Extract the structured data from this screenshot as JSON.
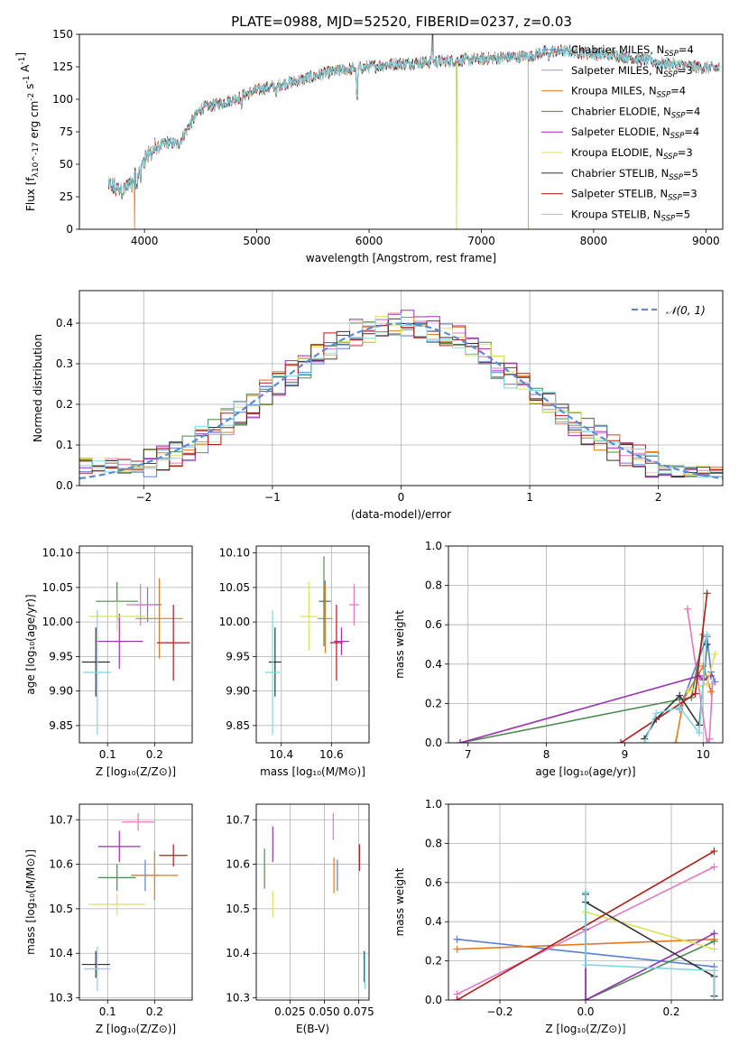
{
  "figure_title": "PLATE=0988, MJD=52520, FIBERID=0237, z=0.03",
  "chart_data": [
    {
      "id": "spectrum",
      "type": "line",
      "title": "PLATE=0988, MJD=52520, FIBERID=0237, z=0.03",
      "xlabel": "wavelength [Angstrom, rest frame]",
      "ylabel": "Flux [f_λ10^-17 erg cm^-2 s^-1 A^-1]",
      "xlim": [
        3420,
        9150
      ],
      "ylim": [
        0,
        150
      ],
      "xticks": [
        4000,
        5000,
        6000,
        7000,
        8000,
        9000
      ],
      "yticks": [
        0,
        25,
        50,
        75,
        100,
        125,
        150
      ],
      "grid": false,
      "legend": "upper right",
      "series": [
        {
          "name": "Chabrier MILES, N_SSP=4",
          "color": "#5B7FD6"
        },
        {
          "name": "Salpeter MILES, N_SSP=3",
          "color": "#E377C2"
        },
        {
          "name": "Kroupa MILES, N_SSP=4",
          "color": "#E07B24"
        },
        {
          "name": "Chabrier ELODIE, N_SSP=4",
          "color": "#4F8A4F"
        },
        {
          "name": "Salpeter ELODIE, N_SSP=4",
          "color": "#9A32B0"
        },
        {
          "name": "Kroupa ELODIE, N_SSP=3",
          "color": "#D8E45A"
        },
        {
          "name": "Chabrier STELIB, N_SSP=5",
          "color": "#333333"
        },
        {
          "name": "Salpeter STELIB, N_SSP=3",
          "color": "#B01C1C"
        },
        {
          "name": "Kroupa STELIB, N_SSP=5",
          "color": "#7FD8E0"
        }
      ],
      "continuum": {
        "x": [
          3680,
          3800,
          3900,
          4000,
          4100,
          4200,
          4300,
          4400,
          4500,
          4600,
          4800,
          5000,
          5200,
          5400,
          5600,
          5800,
          6000,
          6200,
          6400,
          6600,
          6800,
          7000,
          7200,
          7400,
          7600,
          7800,
          8000,
          8200,
          8400,
          8600,
          8800,
          9000
        ],
        "y": [
          33,
          30,
          36,
          55,
          62,
          67,
          65,
          80,
          93,
          95,
          100,
          107,
          111,
          115,
          120,
          123,
          125,
          127,
          128,
          129,
          130,
          131,
          132,
          133,
          137,
          137,
          135,
          134,
          131,
          128,
          126,
          124
        ]
      },
      "drops": [
        {
          "series": 2,
          "x": [
            3912,
            7420
          ]
        },
        {
          "series": 5,
          "x": [
            6778
          ]
        },
        {
          "series": 3,
          "x": [
            6778
          ]
        }
      ]
    },
    {
      "id": "residuals",
      "type": "step",
      "xlabel": "(data-model)/error",
      "ylabel": "Normed distribution",
      "xlim": [
        -2.5,
        2.5
      ],
      "ylim": [
        0,
        0.48
      ],
      "xticks": [
        -2,
        -1,
        0,
        1,
        2
      ],
      "yticks": [
        0.0,
        0.1,
        0.2,
        0.3,
        0.4
      ],
      "grid": true,
      "legend": "upper right",
      "reference": {
        "name": "𝒩(0, 1)",
        "color": "#5B8BD6"
      }
    },
    {
      "id": "age_vs_Z",
      "type": "errorbar",
      "xlabel": "Z [log₁₀(Z/Z⊙)]",
      "ylabel": "age  [log₁₀(age/yr)]",
      "xlim": [
        0.04,
        0.28
      ],
      "ylim": [
        9.825,
        10.11
      ],
      "xticks": [
        0.1,
        0.2
      ],
      "yticks": [
        9.85,
        9.9,
        9.95,
        10.0,
        10.05,
        10.1
      ],
      "grid": true,
      "points": [
        {
          "c": 0,
          "x": 0.185,
          "y": 10.025,
          "xe": 0.03,
          "ye": 0.025
        },
        {
          "c": 1,
          "x": 0.17,
          "y": 10.025,
          "xe": 0.03,
          "ye": 0.03
        },
        {
          "c": 2,
          "x": 0.21,
          "y": 10.005,
          "xe": 0.05,
          "ye": 0.058
        },
        {
          "c": 3,
          "x": 0.12,
          "y": 10.03,
          "xe": 0.045,
          "ye": 0.028
        },
        {
          "c": 4,
          "x": 0.125,
          "y": 9.972,
          "xe": 0.05,
          "ye": 0.04
        },
        {
          "c": 5,
          "x": 0.12,
          "y": 10.008,
          "xe": 0.06,
          "ye": 0.022
        },
        {
          "c": 6,
          "x": 0.075,
          "y": 9.942,
          "xe": 0.03,
          "ye": 0.05
        },
        {
          "c": 7,
          "x": 0.24,
          "y": 9.97,
          "xe": 0.035,
          "ye": 0.055
        },
        {
          "c": 8,
          "x": 0.078,
          "y": 9.927,
          "xe": 0.03,
          "ye": 0.09
        }
      ]
    },
    {
      "id": "age_vs_mass",
      "type": "errorbar",
      "xlabel": "mass [log₁₀(M/M⊙)]",
      "ylabel": "",
      "xlim": [
        10.3,
        10.75
      ],
      "ylim": [
        9.825,
        10.11
      ],
      "xticks": [
        10.4,
        10.6
      ],
      "yticks": [
        9.85,
        9.9,
        9.95,
        10.0,
        10.05,
        10.1
      ],
      "grid": true,
      "points": [
        {
          "c": 0,
          "x": 10.575,
          "y": 10.03,
          "xe": 0.025,
          "ye": 0.03
        },
        {
          "c": 1,
          "x": 10.69,
          "y": 10.025,
          "xe": 0.02,
          "ye": 0.03
        },
        {
          "c": 2,
          "x": 10.575,
          "y": 10.005,
          "xe": 0.03,
          "ye": 0.05
        },
        {
          "c": 3,
          "x": 10.57,
          "y": 10.03,
          "xe": 0.02,
          "ye": 0.065
        },
        {
          "c": 4,
          "x": 10.64,
          "y": 9.972,
          "xe": 0.03,
          "ye": 0.02
        },
        {
          "c": 5,
          "x": 10.51,
          "y": 10.008,
          "xe": 0.035,
          "ye": 0.05
        },
        {
          "c": 6,
          "x": 10.375,
          "y": 9.942,
          "xe": 0.025,
          "ye": 0.05
        },
        {
          "c": 7,
          "x": 10.62,
          "y": 9.97,
          "xe": 0.025,
          "ye": 0.055
        },
        {
          "c": 8,
          "x": 10.365,
          "y": 9.927,
          "xe": 0.03,
          "ye": 0.09
        }
      ]
    },
    {
      "id": "mass_weight_vs_age",
      "type": "line",
      "xlabel": "age  [log₁₀(age/yr)]",
      "ylabel": "mass weight",
      "xlim": [
        6.75,
        10.25
      ],
      "ylim": [
        0,
        1.0
      ],
      "xticks": [
        7,
        8,
        9,
        10
      ],
      "yticks": [
        0.0,
        0.2,
        0.4,
        0.6,
        0.8,
        1.0
      ],
      "grid": true,
      "series": [
        {
          "c": 0,
          "x": [
            9.7,
            10.05,
            10.1,
            10.15
          ],
          "y": [
            0.17,
            0.54,
            0.36,
            0.31
          ]
        },
        {
          "c": 1,
          "x": [
            9.8,
            10.05,
            10.08,
            10.12
          ],
          "y": [
            0.68,
            0.0,
            0.02,
            0.3
          ]
        },
        {
          "c": 2,
          "x": [
            9.65,
            9.75,
            10.0,
            10.1
          ],
          "y": [
            0.0,
            0.22,
            0.39,
            0.26
          ]
        },
        {
          "c": 3,
          "x": [
            6.9,
            9.7,
            9.85,
            10.0
          ],
          "y": [
            0.0,
            0.22,
            0.23,
            0.55
          ]
        },
        {
          "c": 4,
          "x": [
            6.9,
            9.95,
            10.0,
            10.1
          ],
          "y": [
            0.0,
            0.34,
            0.32,
            0.34
          ]
        },
        {
          "c": 5,
          "x": [
            9.8,
            10.05,
            10.15
          ],
          "y": [
            0.26,
            0.3,
            0.45
          ]
        },
        {
          "c": 6,
          "x": [
            9.25,
            9.4,
            9.7,
            9.95,
            10.05
          ],
          "y": [
            0.02,
            0.12,
            0.24,
            0.09,
            0.5
          ]
        },
        {
          "c": 7,
          "x": [
            8.95,
            9.9,
            10.05
          ],
          "y": [
            0.0,
            0.25,
            0.76
          ]
        },
        {
          "c": 8,
          "x": [
            9.25,
            9.4,
            9.7,
            9.95,
            10.05
          ],
          "y": [
            0.0,
            0.15,
            0.18,
            0.05,
            0.55
          ]
        }
      ]
    },
    {
      "id": "mass_vs_Z",
      "type": "errorbar",
      "xlabel": "Z [log₁₀(Z/Z⊙)]",
      "ylabel": "mass [log₁₀(M/M⊙)]",
      "xlim": [
        0.04,
        0.28
      ],
      "ylim": [
        10.295,
        10.735
      ],
      "xticks": [
        0.1,
        0.2
      ],
      "yticks": [
        10.3,
        10.4,
        10.5,
        10.6,
        10.7
      ],
      "grid": true,
      "points": [
        {
          "c": 0,
          "x": 0.18,
          "y": 10.575,
          "xe": 0.03,
          "ye": 0.035
        },
        {
          "c": 1,
          "x": 0.165,
          "y": 10.695,
          "xe": 0.035,
          "ye": 0.02
        },
        {
          "c": 2,
          "x": 0.2,
          "y": 10.575,
          "xe": 0.05,
          "ye": 0.055
        },
        {
          "c": 3,
          "x": 0.12,
          "y": 10.57,
          "xe": 0.04,
          "ye": 0.03
        },
        {
          "c": 4,
          "x": 0.125,
          "y": 10.64,
          "xe": 0.045,
          "ye": 0.035
        },
        {
          "c": 5,
          "x": 0.12,
          "y": 10.51,
          "xe": 0.06,
          "ye": 0.025
        },
        {
          "c": 6,
          "x": 0.075,
          "y": 10.375,
          "xe": 0.03,
          "ye": 0.03
        },
        {
          "c": 7,
          "x": 0.24,
          "y": 10.62,
          "xe": 0.03,
          "ye": 0.025
        },
        {
          "c": 8,
          "x": 0.078,
          "y": 10.365,
          "xe": 0.028,
          "ye": 0.05
        }
      ]
    },
    {
      "id": "mass_vs_EBV",
      "type": "errorbar",
      "xlabel": "E(B-V)",
      "ylabel": "",
      "xlim": [
        0.0005,
        0.0825
      ],
      "ylim": [
        10.295,
        10.735
      ],
      "xticks": [
        0.025,
        0.05,
        0.075
      ],
      "yticks": [
        10.3,
        10.4,
        10.5,
        10.6,
        10.7
      ],
      "grid": true,
      "points": [
        {
          "c": 0,
          "x": 0.0595,
          "y": 10.575,
          "xe": 0,
          "ye": 0.035
        },
        {
          "c": 1,
          "x": 0.0565,
          "y": 10.685,
          "xe": 0,
          "ye": 0.03
        },
        {
          "c": 2,
          "x": 0.057,
          "y": 10.575,
          "xe": 0,
          "ye": 0.04
        },
        {
          "c": 3,
          "x": 0.0065,
          "y": 10.59,
          "xe": 0,
          "ye": 0.045
        },
        {
          "c": 4,
          "x": 0.0125,
          "y": 10.645,
          "xe": 0,
          "ye": 0.04
        },
        {
          "c": 5,
          "x": 0.0125,
          "y": 10.51,
          "xe": 0,
          "ye": 0.03
        },
        {
          "c": 6,
          "x": 0.079,
          "y": 10.37,
          "xe": 0,
          "ye": 0.035
        },
        {
          "c": 7,
          "x": 0.0755,
          "y": 10.615,
          "xe": 0,
          "ye": 0.03
        },
        {
          "c": 8,
          "x": 0.0795,
          "y": 10.36,
          "xe": 0,
          "ye": 0.04
        }
      ]
    },
    {
      "id": "mass_weight_vs_Z",
      "type": "line",
      "xlabel": "Z [log₁₀(Z/Z⊙)]",
      "ylabel": "mass weight",
      "xlim": [
        -0.32,
        0.32
      ],
      "ylim": [
        0,
        1.0
      ],
      "xticks": [
        -0.2,
        0.0,
        0.2
      ],
      "yticks": [
        0.0,
        0.2,
        0.4,
        0.6,
        0.8,
        1.0
      ],
      "grid": true,
      "series": [
        {
          "c": 0,
          "x": [
            -0.3,
            0.0,
            0.3
          ],
          "y": [
            0.31,
            0.24,
            0.17
          ]
        },
        {
          "c": 1,
          "x": [
            -0.3,
            0.3
          ],
          "y": [
            0.03,
            0.68
          ]
        },
        {
          "c": 2,
          "x": [
            -0.3,
            0.3
          ],
          "y": [
            0.26,
            0.31
          ]
        },
        {
          "c": 3,
          "x": [
            0.0,
            0.0,
            0.3
          ],
          "y": [
            0.55,
            0.0,
            0.3
          ]
        },
        {
          "c": 4,
          "x": [
            0.0,
            0.0,
            0.3
          ],
          "y": [
            0.36,
            0.0,
            0.34
          ]
        },
        {
          "c": 5,
          "x": [
            0.0,
            0.3
          ],
          "y": [
            0.45,
            0.26
          ]
        },
        {
          "c": 6,
          "x": [
            0.0,
            0.0,
            0.3,
            0.3
          ],
          "y": [
            0.54,
            0.5,
            0.12,
            0.02
          ]
        },
        {
          "c": 7,
          "x": [
            -0.3,
            0.3
          ],
          "y": [
            0.0,
            0.76
          ]
        },
        {
          "c": 8,
          "x": [
            0.0,
            0.0,
            0.3,
            0.3
          ],
          "y": [
            0.55,
            0.18,
            0.15,
            0.0
          ]
        }
      ]
    }
  ]
}
